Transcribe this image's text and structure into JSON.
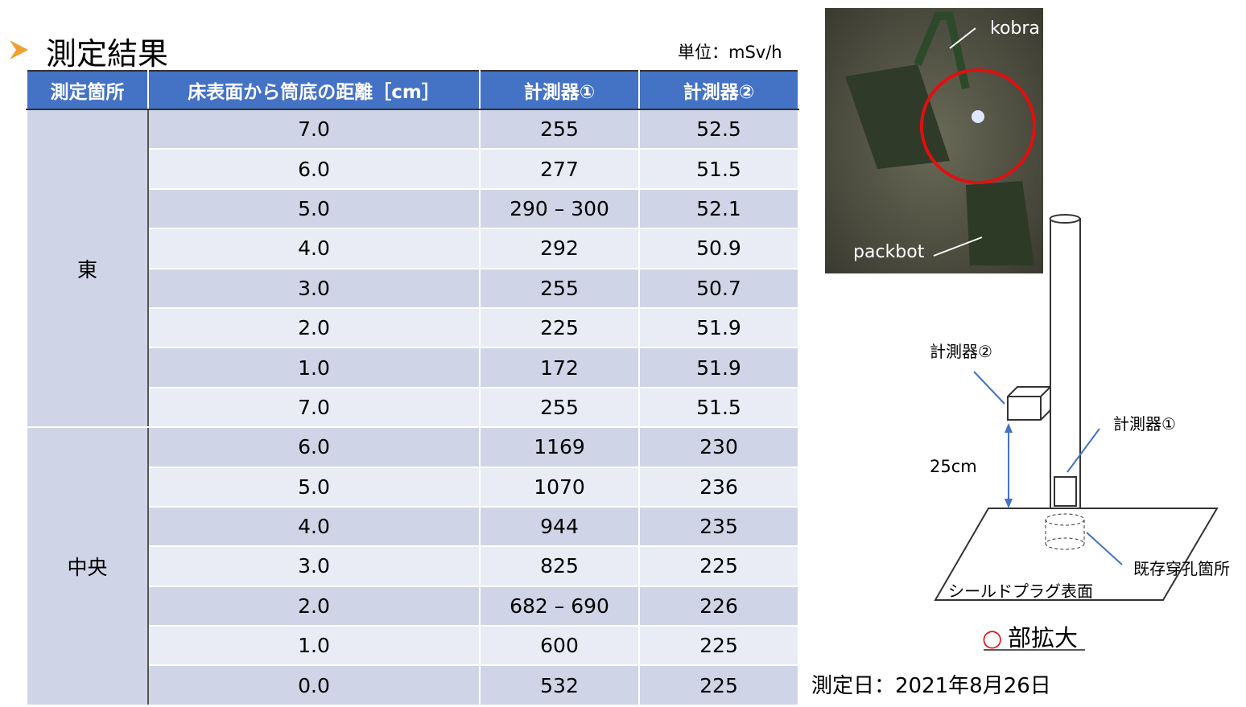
{
  "header": {
    "title": "測定結果",
    "unit": "単位：mSv/h"
  },
  "table": {
    "columns": [
      "測定箇所",
      "床表面から筒底の距離［cm］",
      "計測器①",
      "計測器②"
    ],
    "groups": [
      {
        "label": "東",
        "rows": [
          [
            "7.0",
            "255",
            "52.5"
          ],
          [
            "6.0",
            "277",
            "51.5"
          ],
          [
            "5.0",
            "290 – 300",
            "52.1"
          ],
          [
            "4.0",
            "292",
            "50.9"
          ],
          [
            "3.0",
            "255",
            "50.7"
          ],
          [
            "2.0",
            "225",
            "51.9"
          ],
          [
            "1.0",
            "172",
            "51.9"
          ],
          [
            "7.0",
            "255",
            "51.5"
          ]
        ]
      },
      {
        "label": "中央",
        "rows": [
          [
            "6.0",
            "1169",
            "230"
          ],
          [
            "5.0",
            "1070",
            "236"
          ],
          [
            "4.0",
            "944",
            "235"
          ],
          [
            "3.0",
            "825",
            "225"
          ],
          [
            "2.0",
            "682 – 690",
            "226"
          ],
          [
            "1.0",
            "600",
            "225"
          ],
          [
            "0.0",
            "532",
            "225"
          ]
        ]
      }
    ]
  },
  "photo": {
    "labels": [
      "kobra",
      "packbot"
    ]
  },
  "diagram": {
    "meter2": "計測器②",
    "meter1": "計測器①",
    "height": "25cm",
    "hole": "既存穿孔箇所",
    "surface": "シールドプラグ表面"
  },
  "caption": {
    "mark": "○",
    "text": "部拡大"
  },
  "date": "測定日：2021年8月26日"
}
